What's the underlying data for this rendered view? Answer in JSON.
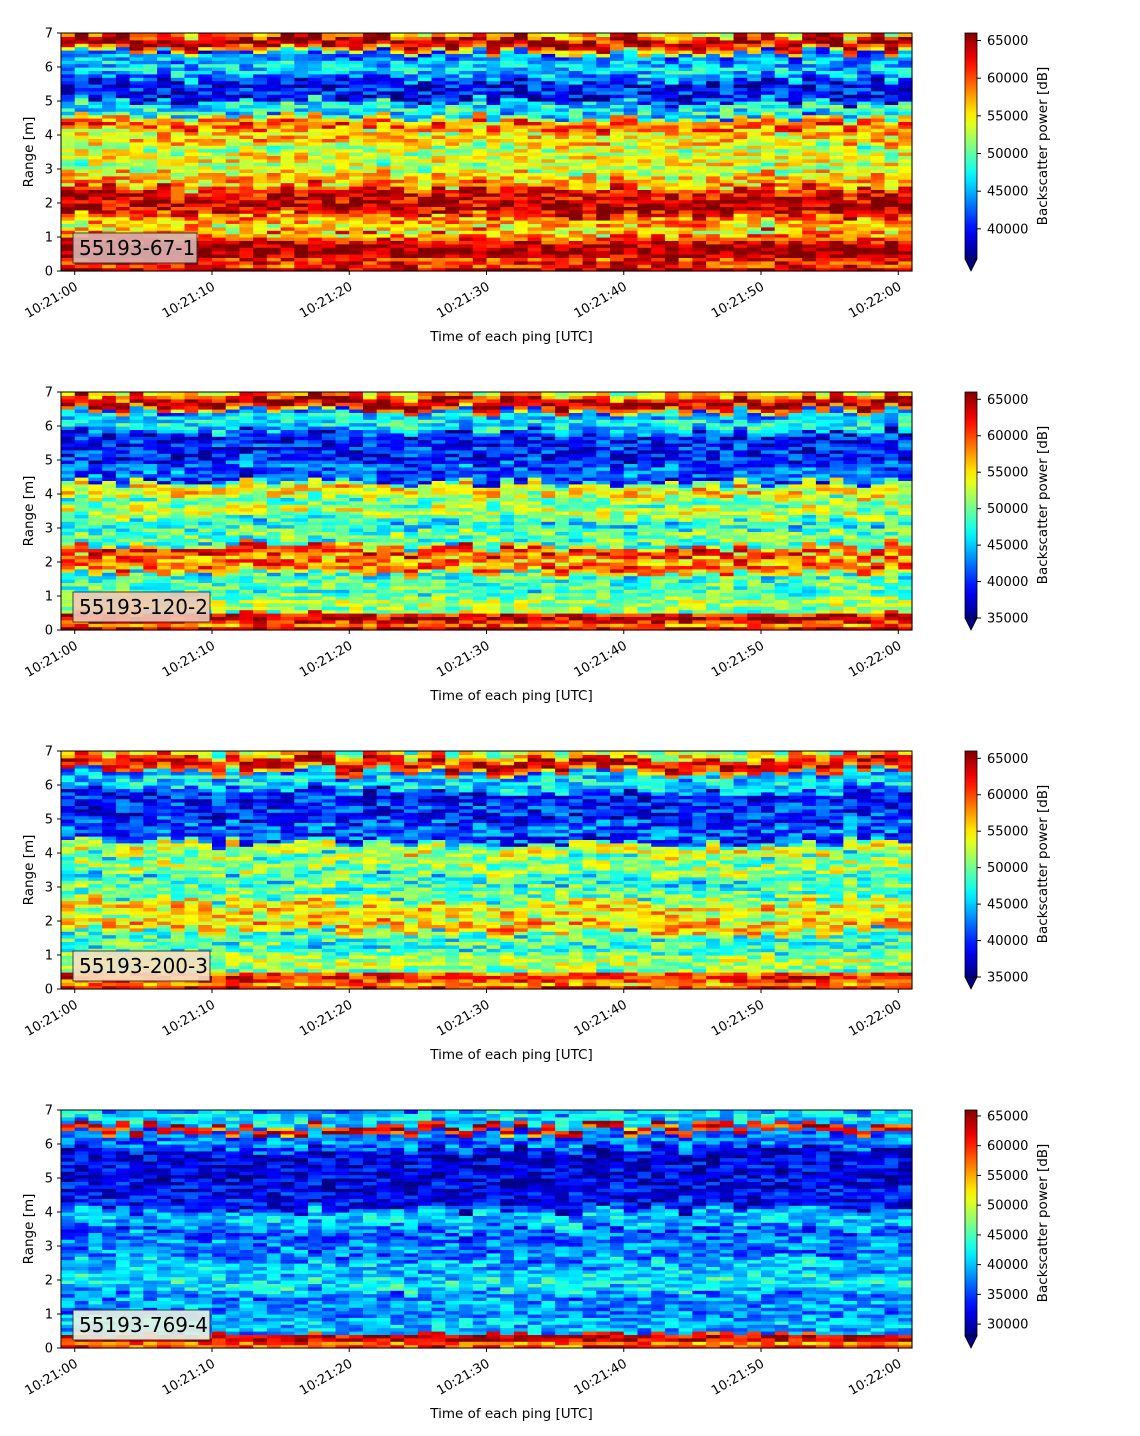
{
  "chart_data": [
    {
      "type": "heatmap",
      "label": "55193-67-1",
      "xlabel": "Time of each ping [UTC]",
      "ylabel": "Range [m]",
      "colorbar_label": "Backscatter power [dB]",
      "x_ticks": [
        "10:21:00",
        "10:21:10",
        "10:21:20",
        "10:21:30",
        "10:21:40",
        "10:21:50",
        "10:22:00"
      ],
      "y_ticks": [
        0,
        1,
        2,
        3,
        4,
        5,
        6,
        7
      ],
      "ylim": [
        0,
        7
      ],
      "xlim_seconds": [
        -1,
        61
      ],
      "colorbar_ticks": [
        40000,
        45000,
        50000,
        55000,
        60000,
        65000
      ],
      "clim": [
        36000,
        66000
      ],
      "colormap": "jet",
      "badge_color": "#d9b3b3",
      "profile": [
        [
          0,
          0.2,
          66000
        ],
        [
          0.25,
          0.3,
          62000
        ],
        [
          0.6,
          0.5,
          66000
        ],
        [
          1.1,
          0.12,
          60000
        ],
        [
          1.25,
          0.22,
          55000
        ],
        [
          1.5,
          0.4,
          58000
        ],
        [
          2.0,
          0.9,
          64000
        ],
        [
          2.7,
          0.35,
          57000
        ],
        [
          3.3,
          0.4,
          55000
        ],
        [
          3.9,
          0.3,
          57000
        ],
        [
          4.3,
          0.25,
          60000
        ],
        [
          4.8,
          0.25,
          48000
        ],
        [
          5.3,
          0.35,
          40000
        ],
        [
          6.0,
          0.35,
          46000
        ],
        [
          6.75,
          0.22,
          66000
        ]
      ]
    },
    {
      "type": "heatmap",
      "label": "55193-120-2",
      "xlabel": "Time of each ping [UTC]",
      "ylabel": "Range [m]",
      "colorbar_label": "Backscatter power [dB]",
      "x_ticks": [
        "10:21:00",
        "10:21:10",
        "10:21:20",
        "10:21:30",
        "10:21:40",
        "10:21:50",
        "10:22:00"
      ],
      "y_ticks": [
        0,
        1,
        2,
        3,
        4,
        5,
        6,
        7
      ],
      "ylim": [
        0,
        7
      ],
      "xlim_seconds": [
        -1,
        61
      ],
      "colorbar_ticks": [
        35000,
        40000,
        45000,
        50000,
        55000,
        60000,
        65000
      ],
      "clim": [
        35000,
        66000
      ],
      "colormap": "jet",
      "badge_color": "#f2c8b8",
      "profile": [
        [
          0,
          0.15,
          66000
        ],
        [
          0.35,
          0.25,
          64000
        ],
        [
          0.8,
          0.4,
          52000
        ],
        [
          1.3,
          0.4,
          50000
        ],
        [
          1.9,
          0.25,
          60000
        ],
        [
          2.3,
          0.2,
          62000
        ],
        [
          2.8,
          0.35,
          50000
        ],
        [
          3.5,
          0.3,
          53000
        ],
        [
          4.1,
          0.25,
          56000
        ],
        [
          4.7,
          0.35,
          42000
        ],
        [
          5.4,
          0.4,
          40000
        ],
        [
          6.1,
          0.3,
          47000
        ],
        [
          6.7,
          0.22,
          66000
        ]
      ]
    },
    {
      "type": "heatmap",
      "label": "55193-200-3",
      "xlabel": "Time of each ping [UTC]",
      "ylabel": "Range [m]",
      "colorbar_label": "Backscatter power [dB]",
      "x_ticks": [
        "10:21:00",
        "10:21:10",
        "10:21:20",
        "10:21:30",
        "10:21:40",
        "10:21:50",
        "10:22:00"
      ],
      "y_ticks": [
        0,
        1,
        2,
        3,
        4,
        5,
        6,
        7
      ],
      "ylim": [
        0,
        7
      ],
      "xlim_seconds": [
        -1,
        61
      ],
      "colorbar_ticks": [
        35000,
        40000,
        45000,
        50000,
        55000,
        60000,
        65000
      ],
      "clim": [
        35000,
        66000
      ],
      "colormap": "jet",
      "badge_color": "#f7dfc4",
      "profile": [
        [
          0,
          0.15,
          64000
        ],
        [
          0.35,
          0.25,
          62000
        ],
        [
          0.8,
          0.45,
          52000
        ],
        [
          1.4,
          0.4,
          49000
        ],
        [
          1.9,
          0.3,
          57000
        ],
        [
          2.4,
          0.3,
          56000
        ],
        [
          2.9,
          0.35,
          50000
        ],
        [
          3.6,
          0.3,
          52000
        ],
        [
          4.1,
          0.2,
          55000
        ],
        [
          4.7,
          0.35,
          42000
        ],
        [
          5.4,
          0.45,
          40000
        ],
        [
          6.1,
          0.3,
          46000
        ],
        [
          6.65,
          0.25,
          64000
        ],
        [
          6.95,
          0.08,
          56000
        ]
      ]
    },
    {
      "type": "heatmap",
      "label": "55193-769-4",
      "xlabel": "Time of each ping [UTC]",
      "ylabel": "Range [m]",
      "colorbar_label": "Backscatter power [dB]",
      "x_ticks": [
        "10:21:00",
        "10:21:10",
        "10:21:20",
        "10:21:30",
        "10:21:40",
        "10:21:50",
        "10:22:00"
      ],
      "y_ticks": [
        0,
        1,
        2,
        3,
        4,
        5,
        6,
        7
      ],
      "ylim": [
        0,
        7
      ],
      "xlim_seconds": [
        -1,
        61
      ],
      "colorbar_ticks": [
        30000,
        35000,
        40000,
        45000,
        50000,
        55000,
        60000,
        65000
      ],
      "clim": [
        28000,
        66000
      ],
      "colormap": "jet",
      "badge_color": "#e9f3e4",
      "profile": [
        [
          0,
          0.12,
          62000
        ],
        [
          0.3,
          0.2,
          64000
        ],
        [
          0.7,
          0.4,
          40000
        ],
        [
          1.3,
          0.4,
          39000
        ],
        [
          1.9,
          0.3,
          43000
        ],
        [
          2.4,
          0.3,
          41000
        ],
        [
          3.0,
          0.4,
          38000
        ],
        [
          3.8,
          0.3,
          41000
        ],
        [
          4.5,
          0.4,
          33000
        ],
        [
          5.3,
          0.5,
          32000
        ],
        [
          6.1,
          0.25,
          38000
        ],
        [
          6.45,
          0.12,
          64000
        ],
        [
          6.8,
          0.25,
          42000
        ]
      ]
    }
  ]
}
